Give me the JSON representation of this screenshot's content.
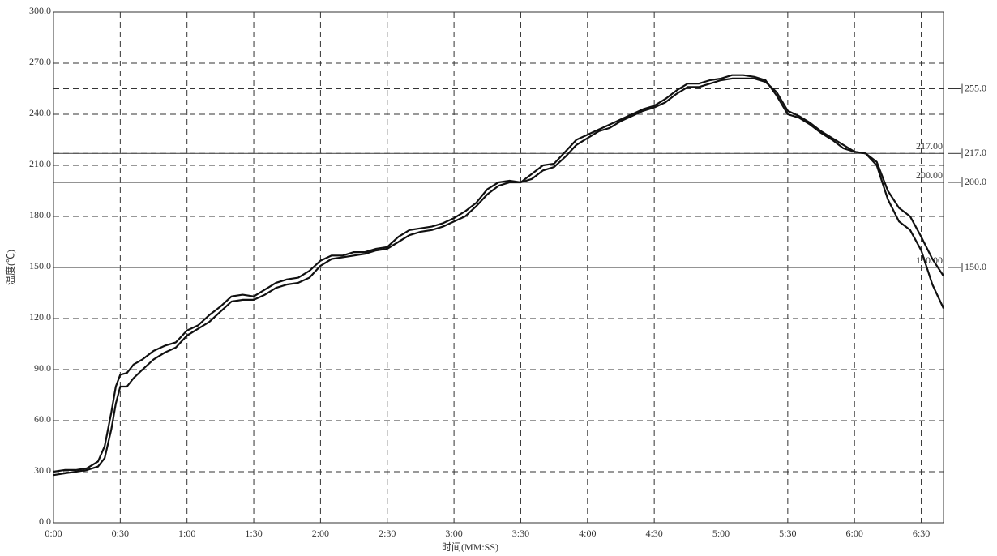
{
  "chart_data": {
    "type": "line",
    "x_label": "时间(MM:SS)",
    "y_label": "温度(℃)",
    "x": [
      0,
      5,
      10,
      15,
      20,
      23,
      26,
      28,
      30,
      33,
      36,
      40,
      45,
      50,
      55,
      60,
      65,
      70,
      75,
      80,
      85,
      90,
      95,
      100,
      105,
      110,
      115,
      120,
      125,
      130,
      135,
      140,
      145,
      150,
      155,
      160,
      165,
      170,
      175,
      180,
      185,
      190,
      195,
      200,
      205,
      210,
      215,
      220,
      225,
      230,
      235,
      240,
      245,
      250,
      255,
      260,
      265,
      270,
      275,
      280,
      285,
      290,
      295,
      300,
      305,
      310,
      315,
      320,
      325,
      330,
      335,
      340,
      345,
      350,
      355,
      360,
      365,
      370,
      375,
      380,
      385,
      390,
      395,
      400
    ],
    "series": [
      {
        "color": "#111111",
        "values": [
          30,
          31,
          31,
          32,
          36,
          45,
          65,
          80,
          87,
          88,
          93,
          96,
          101,
          104,
          106,
          113,
          116,
          122,
          127,
          133,
          134,
          133,
          137,
          141,
          143,
          144,
          148,
          154,
          157,
          157,
          159,
          159,
          161,
          162,
          168,
          172,
          173,
          174,
          176,
          179,
          183,
          188,
          196,
          200,
          201,
          200,
          205,
          210,
          211,
          218,
          225,
          228,
          231,
          234,
          237,
          240,
          243,
          245,
          249,
          254,
          258,
          258,
          260,
          261,
          263,
          263,
          262,
          260,
          251,
          240,
          238,
          234,
          229,
          225,
          220,
          218,
          217,
          212,
          195,
          185,
          180,
          168,
          155,
          145
        ]
      },
      {
        "color": "#111111",
        "values": [
          28,
          29,
          30,
          31,
          33,
          38,
          55,
          70,
          80,
          80,
          85,
          90,
          96,
          100,
          103,
          110,
          114,
          118,
          124,
          130,
          131,
          131,
          134,
          138,
          140,
          141,
          144,
          151,
          155,
          156,
          157,
          158,
          160,
          161,
          165,
          169,
          171,
          172,
          174,
          177,
          180,
          186,
          193,
          198,
          200,
          200,
          202,
          207,
          209,
          215,
          222,
          226,
          230,
          232,
          236,
          239,
          242,
          244,
          247,
          252,
          256,
          256,
          258,
          260,
          261,
          261,
          261,
          259,
          253,
          242,
          239,
          235,
          230,
          226,
          222,
          218,
          217,
          210,
          190,
          177,
          172,
          160,
          140,
          126
        ]
      }
    ],
    "xlim": [
      0,
      400
    ],
    "xticks": [
      {
        "value": 0,
        "label": "0:00"
      },
      {
        "value": 30,
        "label": "0:30"
      },
      {
        "value": 60,
        "label": "1:00"
      },
      {
        "value": 90,
        "label": "1:30"
      },
      {
        "value": 120,
        "label": "2:00"
      },
      {
        "value": 150,
        "label": "2:30"
      },
      {
        "value": 180,
        "label": "3:00"
      },
      {
        "value": 210,
        "label": "3:30"
      },
      {
        "value": 240,
        "label": "4:00"
      },
      {
        "value": 270,
        "label": "4:30"
      },
      {
        "value": 300,
        "label": "5:00"
      },
      {
        "value": 330,
        "label": "5:30"
      },
      {
        "value": 360,
        "label": "6:00"
      },
      {
        "value": 390,
        "label": "6:30"
      }
    ],
    "ylim": [
      0,
      300
    ],
    "yticks": [
      {
        "value": 0,
        "label": "0.0"
      },
      {
        "value": 30,
        "label": "30.0"
      },
      {
        "value": 60,
        "label": "60.0"
      },
      {
        "value": 90,
        "label": "90.0"
      },
      {
        "value": 120,
        "label": "120.0"
      },
      {
        "value": 150,
        "label": "150.0"
      },
      {
        "value": 180,
        "label": "180.0"
      },
      {
        "value": 210,
        "label": "210.0"
      },
      {
        "value": 240,
        "label": "240.0"
      },
      {
        "value": 270,
        "label": "270.0"
      },
      {
        "value": 300,
        "label": "300.0"
      }
    ],
    "grid": true,
    "thresholds": [
      {
        "value": 217,
        "label": "217.00"
      },
      {
        "value": 200,
        "label": "200.00"
      },
      {
        "value": 150,
        "label": "150.00"
      }
    ],
    "markers": [
      {
        "value": 255,
        "label": "255.0"
      },
      {
        "value": 217,
        "label": "217.0"
      },
      {
        "value": 200,
        "label": "200.0"
      },
      {
        "value": 150,
        "label": "150.0"
      }
    ]
  }
}
